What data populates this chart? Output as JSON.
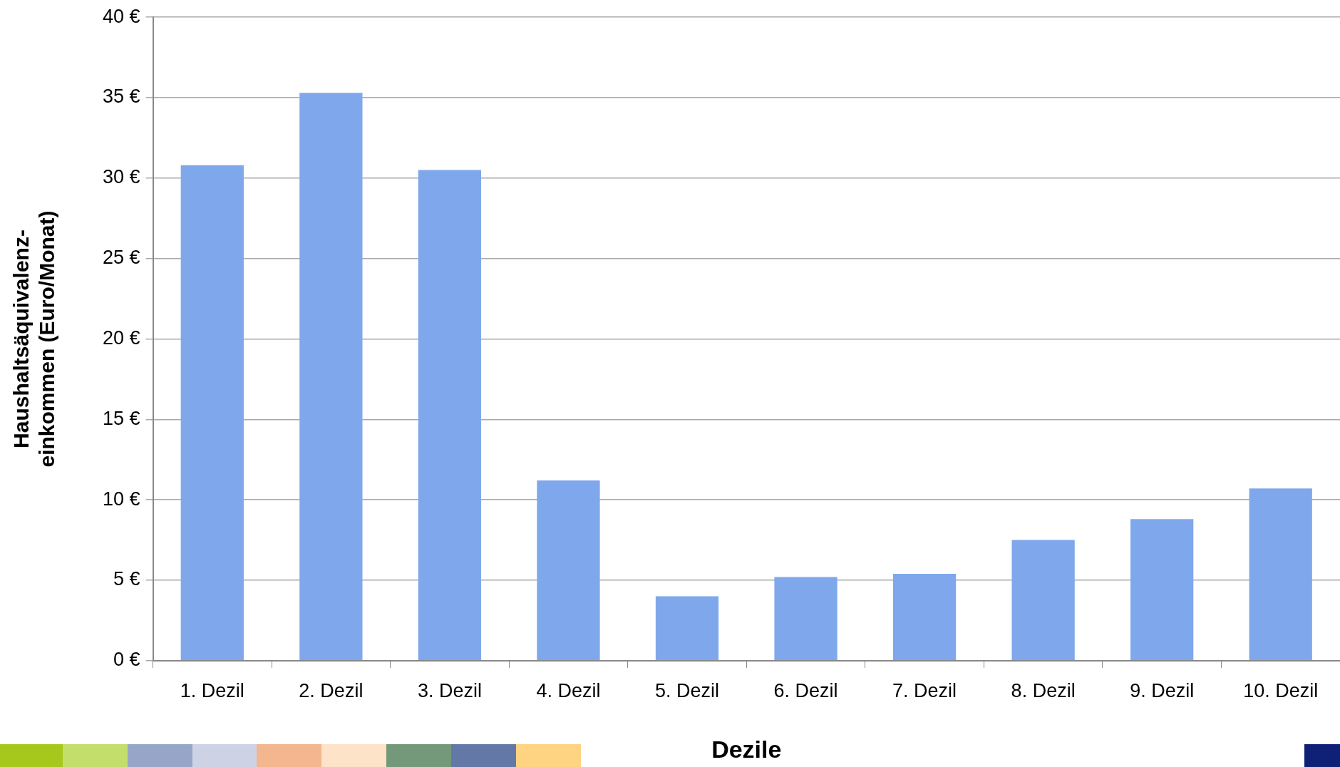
{
  "chart_data": {
    "type": "bar",
    "categories": [
      "1. Dezil",
      "2. Dezil",
      "3. Dezil",
      "4. Dezil",
      "5. Dezil",
      "6. Dezil",
      "7. Dezil",
      "8. Dezil",
      "9. Dezil",
      "10. Dezil"
    ],
    "values": [
      30.8,
      35.3,
      30.5,
      11.2,
      4.0,
      5.2,
      5.4,
      7.5,
      8.8,
      10.7
    ],
    "color": "#7fa8ec",
    "xlabel": "Dezile",
    "ylabel": "Haushaltsäquivalenz-\neinkommen (Euro/Monat)",
    "ylim": [
      0,
      40
    ],
    "yticks": [
      {
        "value": 0,
        "label": "0 €"
      },
      {
        "value": 5,
        "label": "5 €"
      },
      {
        "value": 10,
        "label": "10 €"
      },
      {
        "value": 15,
        "label": "15 €"
      },
      {
        "value": 20,
        "label": "20 €"
      },
      {
        "value": 25,
        "label": "25 €"
      },
      {
        "value": 30,
        "label": "30 €"
      },
      {
        "value": 35,
        "label": "35 €"
      },
      {
        "value": 40,
        "label": "40 €"
      }
    ],
    "grid": "y",
    "legend": false
  }
}
